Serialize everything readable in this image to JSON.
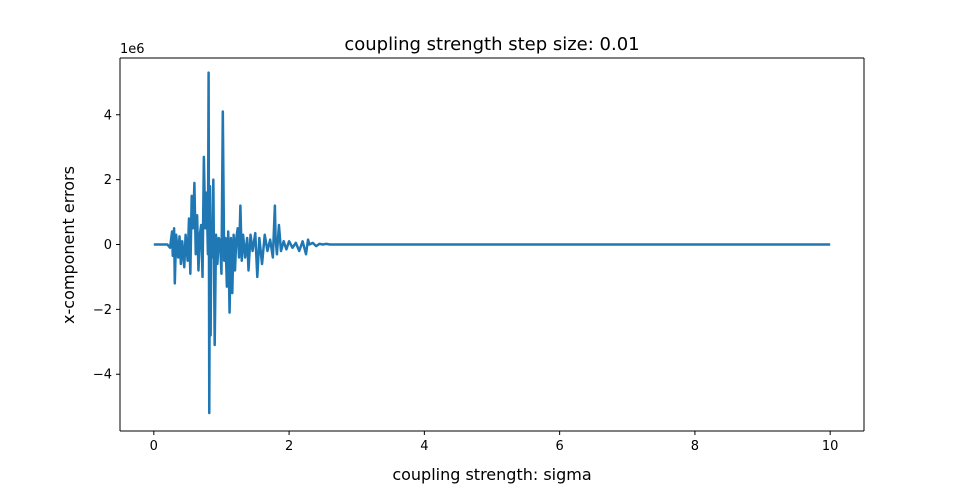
{
  "chart_data": {
    "type": "line",
    "title": "coupling strength step size: 0.01",
    "xlabel": "coupling strength: sigma",
    "ylabel": "x-component errors",
    "y_offset_label": "1e6",
    "xlim": [
      -0.5,
      10.5
    ],
    "ylim": [
      -5.75,
      5.75
    ],
    "x_ticks": [
      0,
      2,
      4,
      6,
      8,
      10
    ],
    "x_tick_labels": [
      "0",
      "2",
      "4",
      "6",
      "8",
      "10"
    ],
    "y_ticks": [
      -4,
      -2,
      0,
      2,
      4
    ],
    "y_tick_labels": [
      "−4",
      "−2",
      "0",
      "2",
      "4"
    ],
    "grid": false,
    "series": [
      {
        "color": "#1f77b4",
        "x": [
          0.0,
          0.2,
          0.24,
          0.27,
          0.28,
          0.3,
          0.31,
          0.33,
          0.36,
          0.38,
          0.4,
          0.42,
          0.45,
          0.47,
          0.5,
          0.52,
          0.54,
          0.56,
          0.58,
          0.6,
          0.62,
          0.64,
          0.66,
          0.68,
          0.7,
          0.72,
          0.74,
          0.76,
          0.78,
          0.8,
          0.81,
          0.82,
          0.83,
          0.84,
          0.85,
          0.86,
          0.88,
          0.9,
          0.92,
          0.94,
          0.96,
          0.98,
          1.0,
          1.02,
          1.04,
          1.06,
          1.08,
          1.1,
          1.12,
          1.14,
          1.16,
          1.18,
          1.2,
          1.22,
          1.24,
          1.26,
          1.28,
          1.3,
          1.32,
          1.35,
          1.38,
          1.4,
          1.43,
          1.46,
          1.5,
          1.53,
          1.56,
          1.6,
          1.64,
          1.68,
          1.72,
          1.76,
          1.79,
          1.8,
          1.82,
          1.85,
          1.88,
          1.92,
          1.96,
          2.0,
          2.05,
          2.1,
          2.15,
          2.2,
          2.25,
          2.28,
          2.3,
          2.35,
          2.4,
          2.45,
          2.5,
          2.55,
          2.6,
          3.0,
          4.0,
          6.0,
          8.0,
          10.0
        ],
        "values": [
          0.0,
          0.0,
          -0.1,
          0.4,
          -0.35,
          0.5,
          -1.2,
          0.3,
          -0.4,
          0.25,
          -0.6,
          0.1,
          -0.7,
          0.3,
          -0.5,
          0.8,
          -0.9,
          1.5,
          0.5,
          1.9,
          -0.3,
          0.9,
          -0.8,
          0.3,
          0.6,
          -1.0,
          2.7,
          0.5,
          1.6,
          -0.3,
          5.3,
          -5.2,
          1.8,
          -2.8,
          0.7,
          -0.4,
          2.0,
          -3.1,
          0.3,
          -0.6,
          0.2,
          0.1,
          -0.9,
          4.1,
          -0.5,
          0.2,
          -1.3,
          0.4,
          -2.1,
          0.2,
          -1.5,
          0.3,
          -0.8,
          0.2,
          0.5,
          -0.4,
          1.2,
          -0.5,
          0.3,
          -0.4,
          0.2,
          -0.8,
          0.3,
          -0.2,
          0.35,
          -1.0,
          0.2,
          -0.6,
          0.3,
          -0.2,
          0.15,
          -0.4,
          1.2,
          0.2,
          -0.3,
          0.6,
          -0.2,
          0.1,
          -0.15,
          0.1,
          -0.1,
          0.05,
          -0.2,
          0.1,
          -0.3,
          0.15,
          0.0,
          0.05,
          -0.05,
          0.02,
          0.0,
          0.02,
          0.0,
          0.0,
          0.0,
          0.0,
          0.0,
          0.0
        ]
      }
    ]
  }
}
